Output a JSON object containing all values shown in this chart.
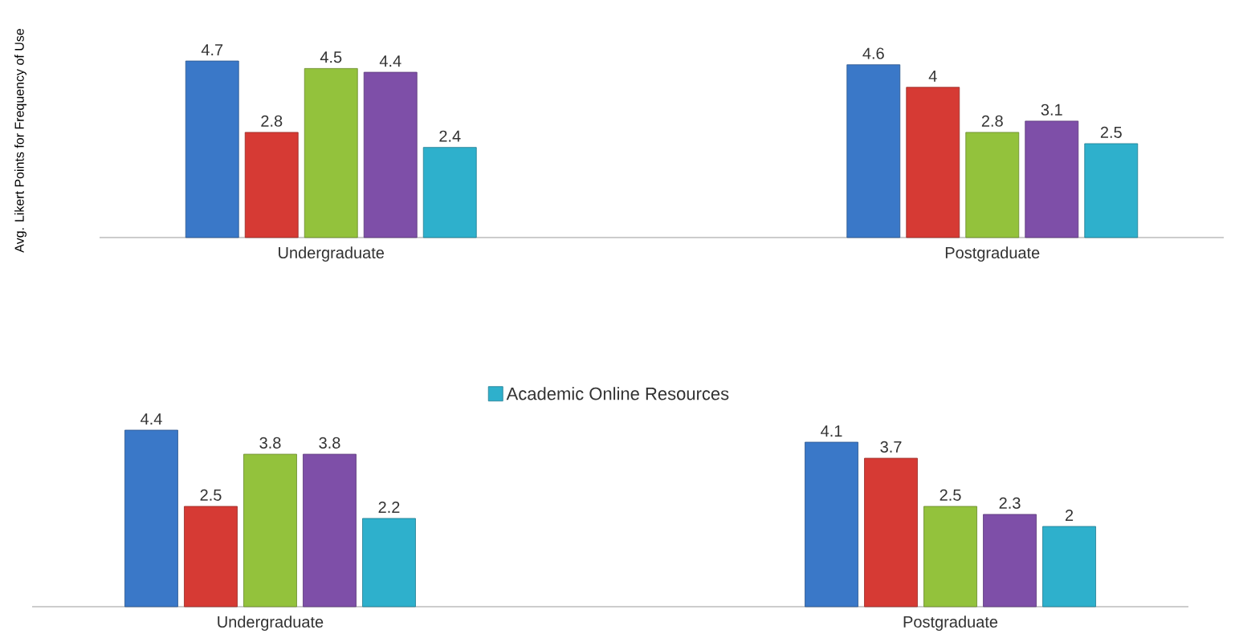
{
  "chart_data": [
    {
      "type": "bar",
      "ylabel": "Avg. Likert Points for Frequency of Use",
      "categories": [
        "Undergraduate",
        "Postgraduate"
      ],
      "data_labels": true,
      "legend": false,
      "series": [
        {
          "color": "#3a78c8",
          "values": [
            4.7,
            4.6
          ]
        },
        {
          "color": "#d63a34",
          "values": [
            2.8,
            4
          ]
        },
        {
          "color": "#93c23c",
          "values": [
            4.5,
            2.8
          ]
        },
        {
          "color": "#7e4fa8",
          "values": [
            4.4,
            3.1
          ]
        },
        {
          "color": "#2eb0cc",
          "values": [
            2.4,
            2.5
          ]
        }
      ]
    },
    {
      "type": "bar",
      "categories": [
        "Undergraduate",
        "Postgraduate"
      ],
      "data_labels": true,
      "legend": "top",
      "series": [
        {
          "color": "#3a78c8",
          "values": [
            4.4,
            4.1
          ]
        },
        {
          "color": "#d63a34",
          "values": [
            2.5,
            3.7
          ]
        },
        {
          "color": "#93c23c",
          "values": [
            3.8,
            2.5
          ]
        },
        {
          "color": "#7e4fa8",
          "values": [
            3.8,
            2.3
          ]
        },
        {
          "name": "Academic Online Resources",
          "color": "#2eb0cc",
          "values": [
            2.2,
            2
          ]
        }
      ]
    }
  ]
}
